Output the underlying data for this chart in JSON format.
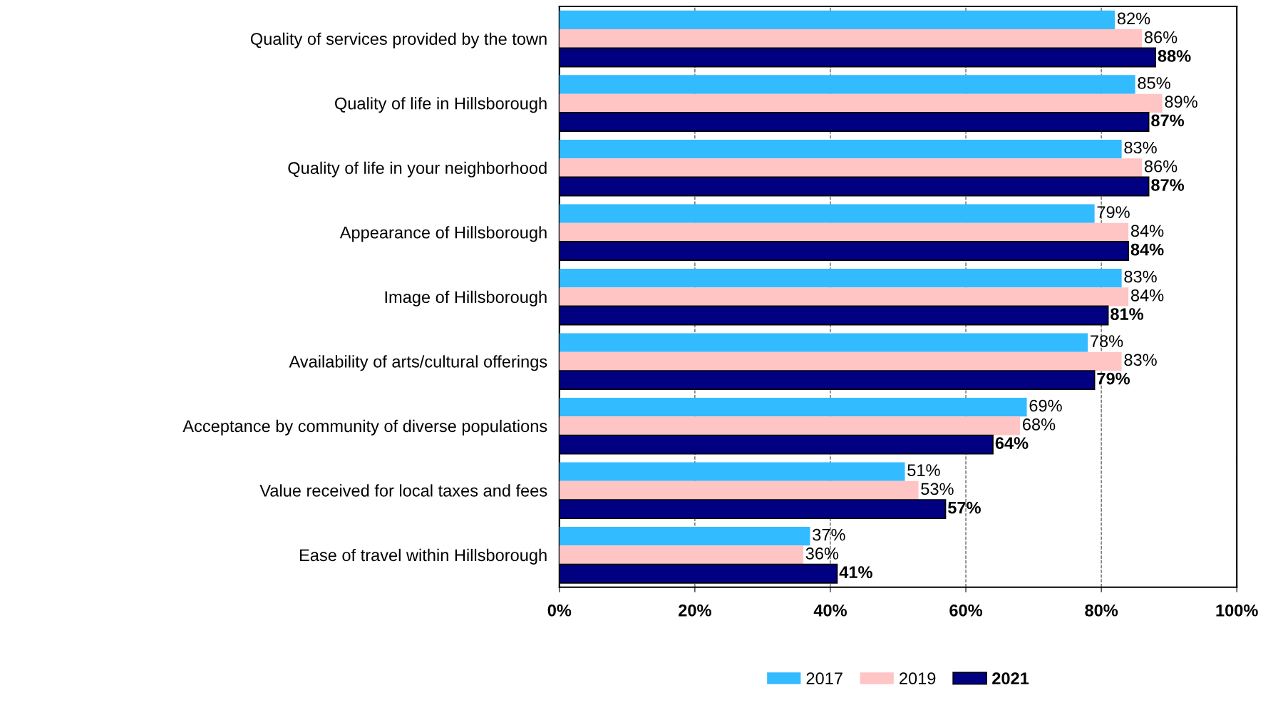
{
  "chart_data": {
    "type": "bar",
    "orientation": "horizontal",
    "categories": [
      "Quality of services provided by the town",
      "Quality of life in Hillsborough",
      "Quality of life in your neighborhood",
      "Appearance of Hillsborough",
      "Image of Hillsborough",
      "Availability of arts/cultural offerings",
      "Acceptance by community of diverse populations",
      "Value received for local taxes and fees",
      "Ease of travel within Hillsborough"
    ],
    "series": [
      {
        "name": "2017",
        "color": "#33bbff",
        "values": [
          82,
          85,
          83,
          79,
          83,
          78,
          69,
          51,
          37
        ],
        "value_labels": [
          "82%",
          "85%",
          "83%",
          "79%",
          "83%",
          "78%",
          "69%",
          "51%",
          "37%"
        ]
      },
      {
        "name": "2019",
        "color": "#ffc4c4",
        "values": [
          86,
          89,
          86,
          84,
          84,
          83,
          68,
          53,
          36
        ],
        "value_labels": [
          "86%",
          "89%",
          "86%",
          "84%",
          "84%",
          "83%",
          "68%",
          "53%",
          "36%"
        ]
      },
      {
        "name": "2021",
        "color": "#000080",
        "values": [
          88,
          87,
          87,
          84,
          81,
          79,
          64,
          57,
          41
        ],
        "value_labels": [
          "88%",
          "87%",
          "87%",
          "84%",
          "81%",
          "79%",
          "64%",
          "57%",
          "41%"
        ]
      }
    ],
    "xlim": [
      0,
      100
    ],
    "xticks": [
      {
        "value": 0,
        "label": "0%"
      },
      {
        "value": 20,
        "label": "20%"
      },
      {
        "value": 40,
        "label": "40%"
      },
      {
        "value": 60,
        "label": "60%"
      },
      {
        "value": 80,
        "label": "80%"
      },
      {
        "value": 100,
        "label": "100%"
      }
    ],
    "grid": "x",
    "legend": "bottom"
  }
}
